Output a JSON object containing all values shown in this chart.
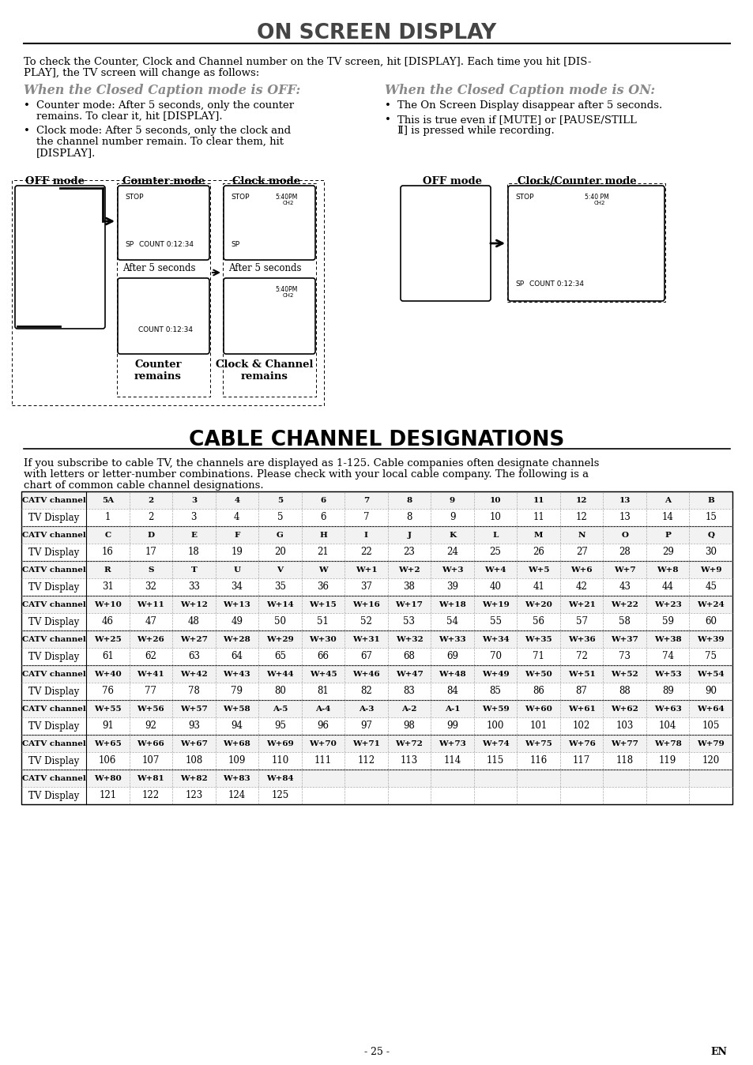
{
  "title_on_screen": "ON SCREEN DISPLAY",
  "title_cable": "CABLE CHANNEL DESIGNATIONS",
  "intro_line1": "To check the Counter, Clock and Channel number on the TV screen, hit [DISPLAY]. Each time you hit [DIS-",
  "intro_line2": "PLAY], the TV screen will change as follows:",
  "off_header": "When the Closed Caption mode is OFF:",
  "on_header": "When the Closed Caption mode is ON:",
  "off_bullet1_line1": "Counter mode: After 5 seconds, only the counter",
  "off_bullet1_line2": "remains. To clear it, hit [DISPLAY].",
  "off_bullet2_line1": "Clock mode: After 5 seconds, only the clock and",
  "off_bullet2_line2": "the channel number remain. To clear them, hit",
  "off_bullet2_line3": "[DISPLAY].",
  "on_bullet1": "The On Screen Display disappear after 5 seconds.",
  "on_bullet2_line1": "This is true even if [MUTE] or [PAUSE/STILL",
  "on_bullet2_line2": "Ⅱ] is pressed while recording.",
  "cable_intro_line1": "If you subscribe to cable TV, the channels are displayed as 1-125. Cable companies often designate channels",
  "cable_intro_line2": "with letters or letter-number combinations. Please check with your local cable company. The following is a",
  "cable_intro_line3": "chart of common cable channel designations.",
  "table_data": [
    [
      "CATV channel",
      "5A",
      "2",
      "3",
      "4",
      "5",
      "6",
      "7",
      "8",
      "9",
      "10",
      "11",
      "12",
      "13",
      "A",
      "B"
    ],
    [
      "TV Display",
      "1",
      "2",
      "3",
      "4",
      "5",
      "6",
      "7",
      "8",
      "9",
      "10",
      "11",
      "12",
      "13",
      "14",
      "15"
    ],
    [
      "CATV channel",
      "C",
      "D",
      "E",
      "F",
      "G",
      "H",
      "I",
      "J",
      "K",
      "L",
      "M",
      "N",
      "O",
      "P",
      "Q"
    ],
    [
      "TV Display",
      "16",
      "17",
      "18",
      "19",
      "20",
      "21",
      "22",
      "23",
      "24",
      "25",
      "26",
      "27",
      "28",
      "29",
      "30"
    ],
    [
      "CATV channel",
      "R",
      "S",
      "T",
      "U",
      "V",
      "W",
      "W+1",
      "W+2",
      "W+3",
      "W+4",
      "W+5",
      "W+6",
      "W+7",
      "W+8",
      "W+9"
    ],
    [
      "TV Display",
      "31",
      "32",
      "33",
      "34",
      "35",
      "36",
      "37",
      "38",
      "39",
      "40",
      "41",
      "42",
      "43",
      "44",
      "45"
    ],
    [
      "CATV channel",
      "W+10",
      "W+11",
      "W+12",
      "W+13",
      "W+14",
      "W+15",
      "W+16",
      "W+17",
      "W+18",
      "W+19",
      "W+20",
      "W+21",
      "W+22",
      "W+23",
      "W+24"
    ],
    [
      "TV Display",
      "46",
      "47",
      "48",
      "49",
      "50",
      "51",
      "52",
      "53",
      "54",
      "55",
      "56",
      "57",
      "58",
      "59",
      "60"
    ],
    [
      "CATV channel",
      "W+25",
      "W+26",
      "W+27",
      "W+28",
      "W+29",
      "W+30",
      "W+31",
      "W+32",
      "W+33",
      "W+34",
      "W+35",
      "W+36",
      "W+37",
      "W+38",
      "W+39"
    ],
    [
      "TV Display",
      "61",
      "62",
      "63",
      "64",
      "65",
      "66",
      "67",
      "68",
      "69",
      "70",
      "71",
      "72",
      "73",
      "74",
      "75"
    ],
    [
      "CATV channel",
      "W+40",
      "W+41",
      "W+42",
      "W+43",
      "W+44",
      "W+45",
      "W+46",
      "W+47",
      "W+48",
      "W+49",
      "W+50",
      "W+51",
      "W+52",
      "W+53",
      "W+54"
    ],
    [
      "TV Display",
      "76",
      "77",
      "78",
      "79",
      "80",
      "81",
      "82",
      "83",
      "84",
      "85",
      "86",
      "87",
      "88",
      "89",
      "90"
    ],
    [
      "CATV channel",
      "W+55",
      "W+56",
      "W+57",
      "W+58",
      "A-5",
      "A-4",
      "A-3",
      "A-2",
      "A-1",
      "W+59",
      "W+60",
      "W+61",
      "W+62",
      "W+63",
      "W+64"
    ],
    [
      "TV Display",
      "91",
      "92",
      "93",
      "94",
      "95",
      "96",
      "97",
      "98",
      "99",
      "100",
      "101",
      "102",
      "103",
      "104",
      "105"
    ],
    [
      "CATV channel",
      "W+65",
      "W+66",
      "W+67",
      "W+68",
      "W+69",
      "W+70",
      "W+71",
      "W+72",
      "W+73",
      "W+74",
      "W+75",
      "W+76",
      "W+77",
      "W+78",
      "W+79"
    ],
    [
      "TV Display",
      "106",
      "107",
      "108",
      "109",
      "110",
      "111",
      "112",
      "113",
      "114",
      "115",
      "116",
      "117",
      "118",
      "119",
      "120"
    ],
    [
      "CATV channel",
      "W+80",
      "W+81",
      "W+82",
      "W+83",
      "W+84",
      "",
      "",
      "",
      "",
      "",
      "",
      "",
      "",
      "",
      ""
    ],
    [
      "TV Display",
      "121",
      "122",
      "123",
      "124",
      "125",
      "",
      "",
      "",
      "",
      "",
      "",
      "",
      "",
      "",
      ""
    ]
  ],
  "page_num": "- 25 -",
  "page_en": "EN"
}
